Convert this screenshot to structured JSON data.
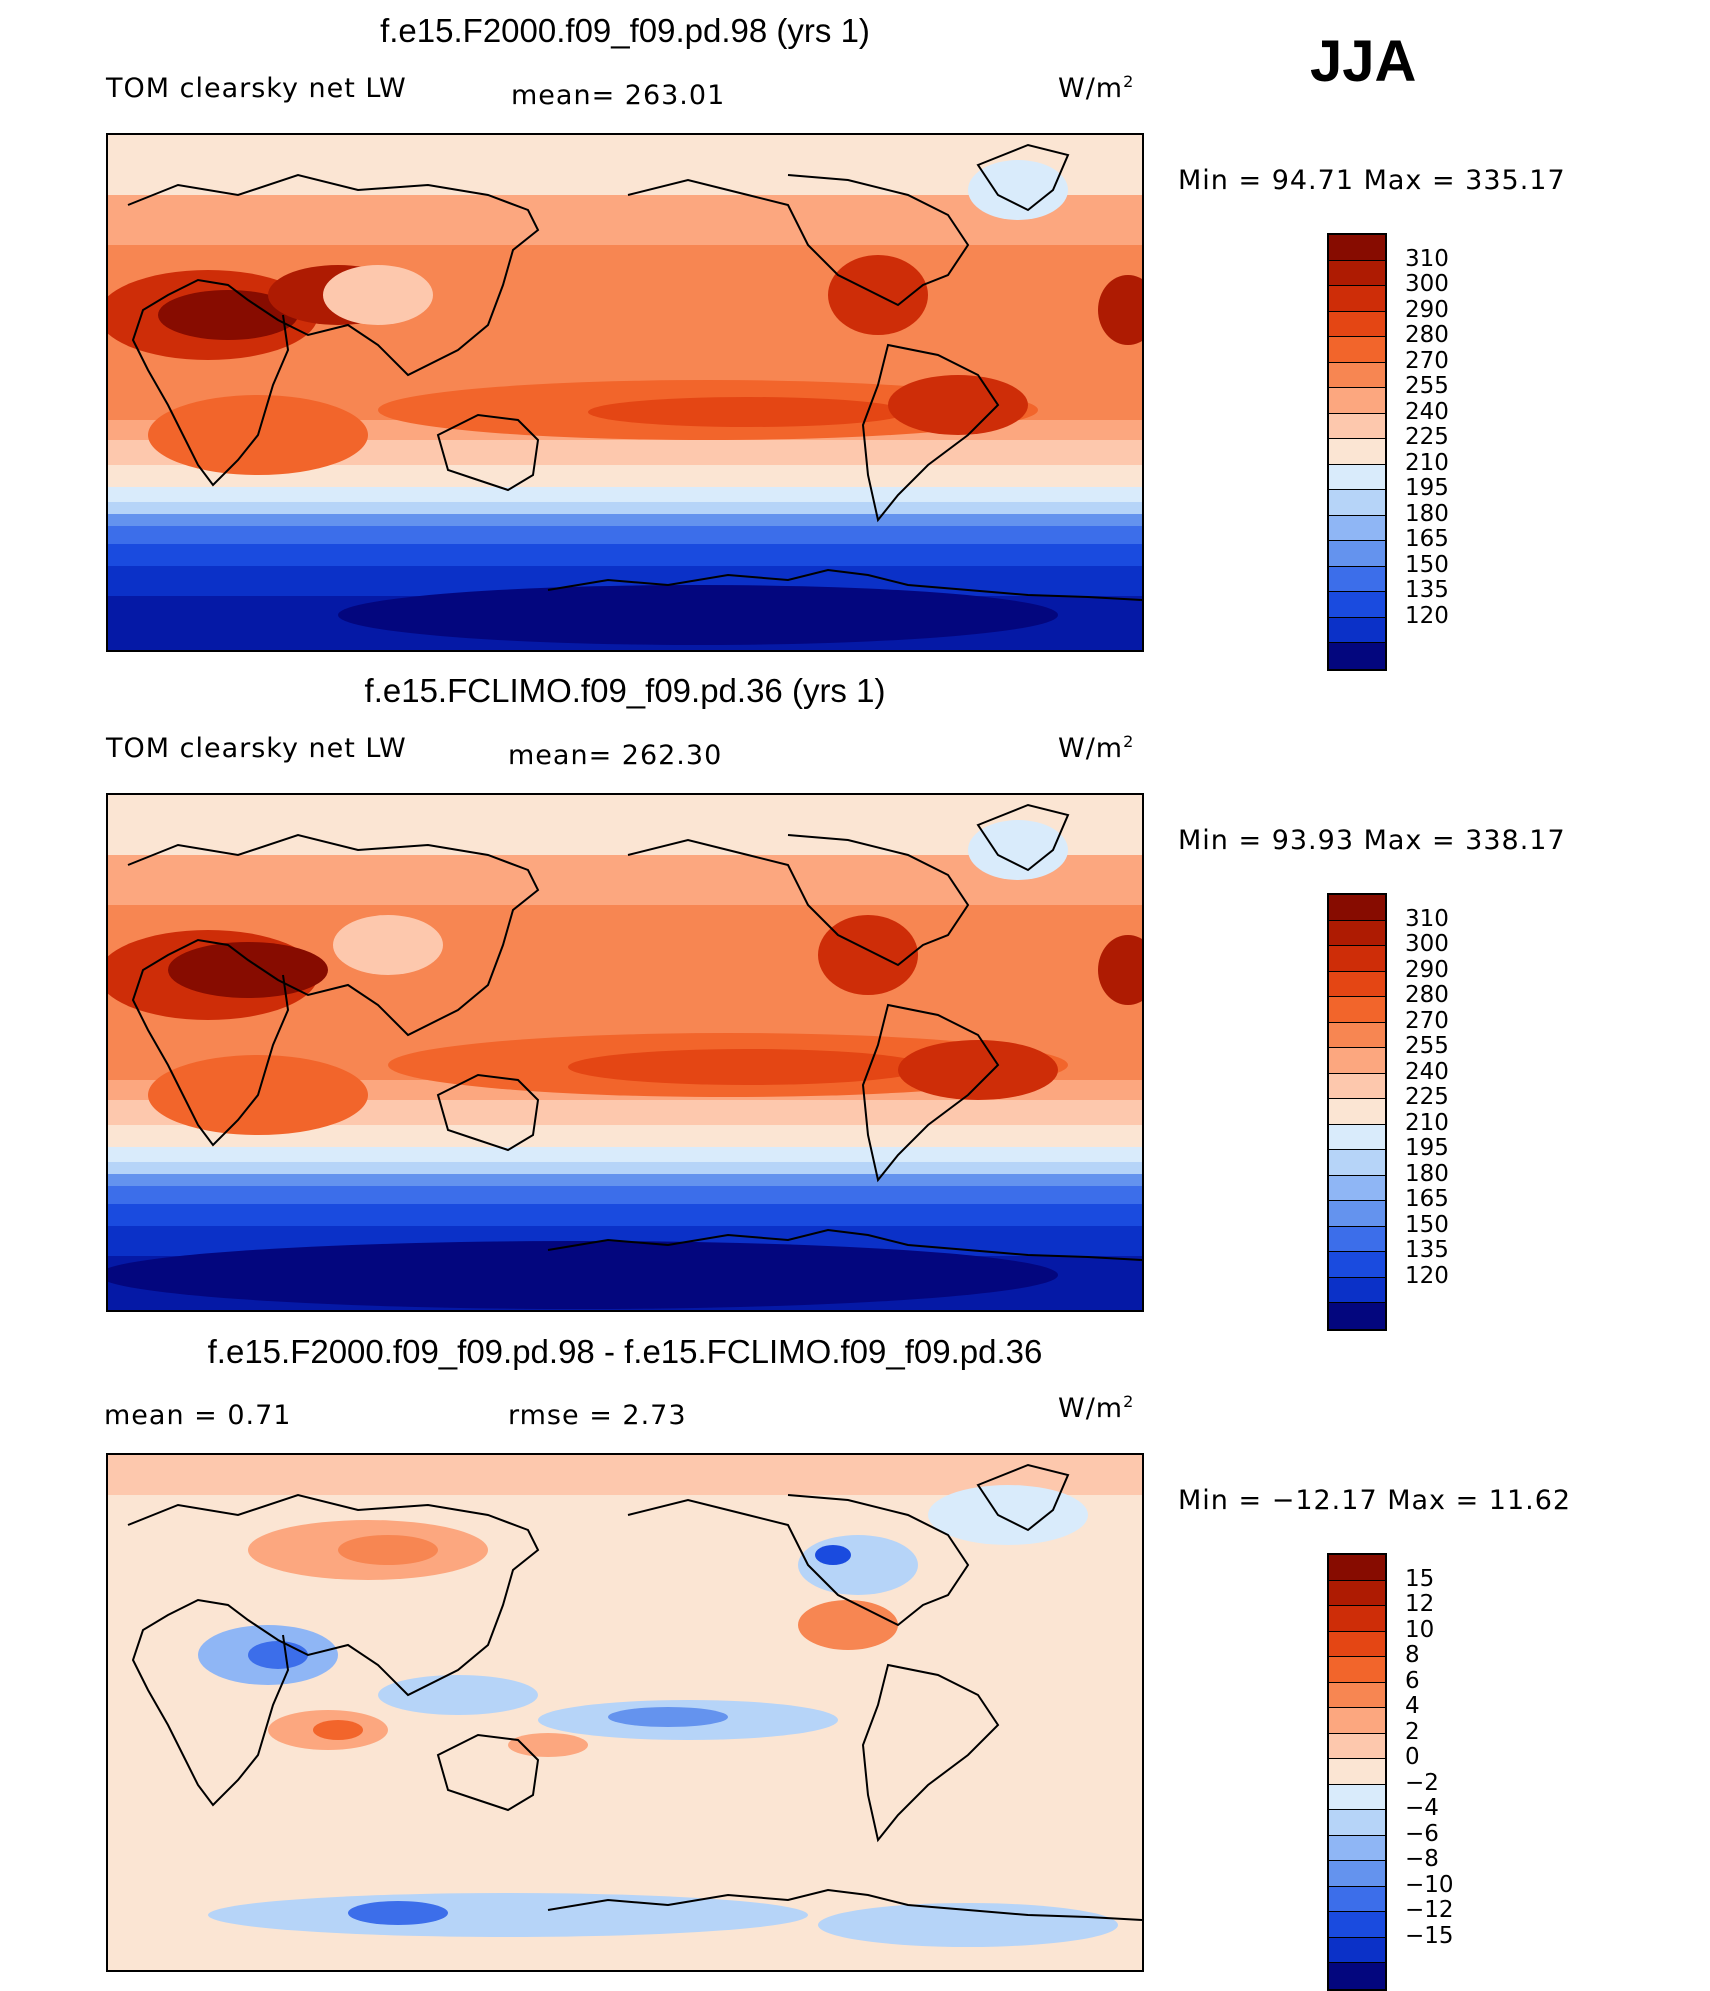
{
  "season": "JJA",
  "colors": {
    "warm": [
      "#fbe5d3",
      "#fdc8ad",
      "#fca77f",
      "#f78652",
      "#f2652b",
      "#e44614",
      "#ce2d08",
      "#ae1b02",
      "#870c00"
    ],
    "cool": [
      "#d9ebfb",
      "#b6d4f8",
      "#8fb6f5",
      "#6493ee",
      "#3c6eea",
      "#1a4bdf",
      "#0b31c8",
      "#0519a6",
      "#03067e"
    ],
    "coast": "#000000"
  },
  "panels": [
    {
      "title": "f.e15.F2000.f09_f09.pd.98 (yrs 1)",
      "left_label": "TOM clearsky net LW",
      "mid_label": "mean=  263.01",
      "units": "W/m",
      "units_sup": "2",
      "minmax": "Min  =    94.71  Max  =  335.17",
      "colorbar_levels": [
        "310",
        "300",
        "290",
        "280",
        "270",
        "255",
        "240",
        "225",
        "210",
        "195",
        "180",
        "165",
        "150",
        "135",
        "120"
      ],
      "colorbar_colors": [
        "#870c00",
        "#ae1b02",
        "#ce2d08",
        "#e44614",
        "#f2652b",
        "#f78652",
        "#fca77f",
        "#fdc8ad",
        "#fbe5d3",
        "#d9ebfb",
        "#b6d4f8",
        "#8fb6f5",
        "#6493ee",
        "#3c6eea",
        "#1a4bdf",
        "#0b31c8",
        "#03067e"
      ]
    },
    {
      "title": "f.e15.FCLIMO.f09_f09.pd.36 (yrs 1)",
      "left_label": "TOM clearsky net LW",
      "mid_label": "mean=  262.30",
      "units": "W/m",
      "units_sup": "2",
      "minmax": "Min  =    93.93  Max  =  338.17",
      "colorbar_levels": [
        "310",
        "300",
        "290",
        "280",
        "270",
        "255",
        "240",
        "225",
        "210",
        "195",
        "180",
        "165",
        "150",
        "135",
        "120"
      ],
      "colorbar_colors": [
        "#870c00",
        "#ae1b02",
        "#ce2d08",
        "#e44614",
        "#f2652b",
        "#f78652",
        "#fca77f",
        "#fdc8ad",
        "#fbe5d3",
        "#d9ebfb",
        "#b6d4f8",
        "#8fb6f5",
        "#6493ee",
        "#3c6eea",
        "#1a4bdf",
        "#0b31c8",
        "#03067e"
      ]
    },
    {
      "title": "f.e15.F2000.f09_f09.pd.98 - f.e15.FCLIMO.f09_f09.pd.36",
      "left_label": "mean  =     0.71",
      "mid_label": "rmse  =     2.73",
      "units": "W/m",
      "units_sup": "2",
      "minmax": "Min  = −12.17  Max  =    11.62",
      "colorbar_levels": [
        "15",
        "12",
        "10",
        "8",
        "6",
        "4",
        "2",
        "0",
        "−2",
        "−4",
        "−6",
        "−8",
        "−10",
        "−12",
        "−15"
      ],
      "colorbar_colors": [
        "#870c00",
        "#ae1b02",
        "#ce2d08",
        "#e44614",
        "#f2652b",
        "#f78652",
        "#fca77f",
        "#fdc8ad",
        "#fbe5d3",
        "#d9ebfb",
        "#b6d4f8",
        "#8fb6f5",
        "#6493ee",
        "#3c6eea",
        "#1a4bdf",
        "#0b31c8",
        "#03067e"
      ]
    }
  ]
}
